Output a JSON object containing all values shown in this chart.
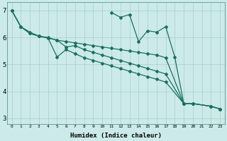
{
  "xlabel": "Humidex (Indice chaleur)",
  "background_color": "#cceaea",
  "grid_color": "#aacccc",
  "line_color": "#1a7060",
  "xlim": [
    -0.5,
    23.5
  ],
  "ylim": [
    2.8,
    7.3
  ],
  "yticks": [
    3,
    4,
    5,
    6,
    7
  ],
  "xticks": [
    0,
    1,
    2,
    3,
    4,
    5,
    6,
    7,
    8,
    9,
    10,
    11,
    12,
    13,
    14,
    15,
    16,
    17,
    18,
    19,
    20,
    21,
    22,
    23
  ],
  "lines": [
    {
      "x": [
        0,
        1,
        2,
        3,
        4,
        5,
        6,
        7,
        8,
        9,
        10,
        11,
        12,
        13,
        14,
        15,
        16,
        17,
        19,
        20,
        22,
        23
      ],
      "y": [
        7.0,
        6.4,
        6.2,
        6.05,
        6.0,
        5.9,
        5.85,
        5.8,
        5.75,
        5.7,
        5.65,
        5.6,
        5.55,
        5.5,
        5.45,
        5.4,
        5.35,
        5.25,
        3.55,
        3.55,
        3.45,
        3.35
      ]
    },
    {
      "x": [
        0,
        1,
        2,
        3,
        4,
        5,
        6,
        7,
        8,
        9,
        10,
        11,
        12,
        13,
        14,
        15,
        16,
        17,
        19,
        20,
        22,
        23
      ],
      "y": [
        7.0,
        6.4,
        6.15,
        6.05,
        5.98,
        5.28,
        5.55,
        5.4,
        5.25,
        5.15,
        5.05,
        4.95,
        4.85,
        4.75,
        4.65,
        4.55,
        4.45,
        4.35,
        3.55,
        3.55,
        3.45,
        3.35
      ]
    },
    {
      "x": [
        0,
        1,
        2,
        3,
        4,
        5,
        6,
        7,
        8,
        9,
        10,
        11,
        12,
        13,
        14,
        15,
        16,
        17,
        19,
        20,
        22,
        23
      ],
      "y": [
        7.0,
        6.4,
        6.15,
        6.05,
        5.98,
        5.9,
        5.65,
        5.7,
        5.55,
        5.45,
        5.35,
        5.25,
        5.15,
        5.05,
        4.95,
        4.85,
        4.75,
        4.65,
        3.55,
        3.55,
        3.45,
        3.35
      ]
    },
    {
      "x": [
        11,
        12,
        13,
        14,
        15,
        16,
        17,
        18,
        19
      ],
      "y": [
        6.93,
        6.75,
        6.85,
        5.85,
        6.25,
        6.2,
        6.4,
        5.28,
        3.55
      ]
    }
  ]
}
